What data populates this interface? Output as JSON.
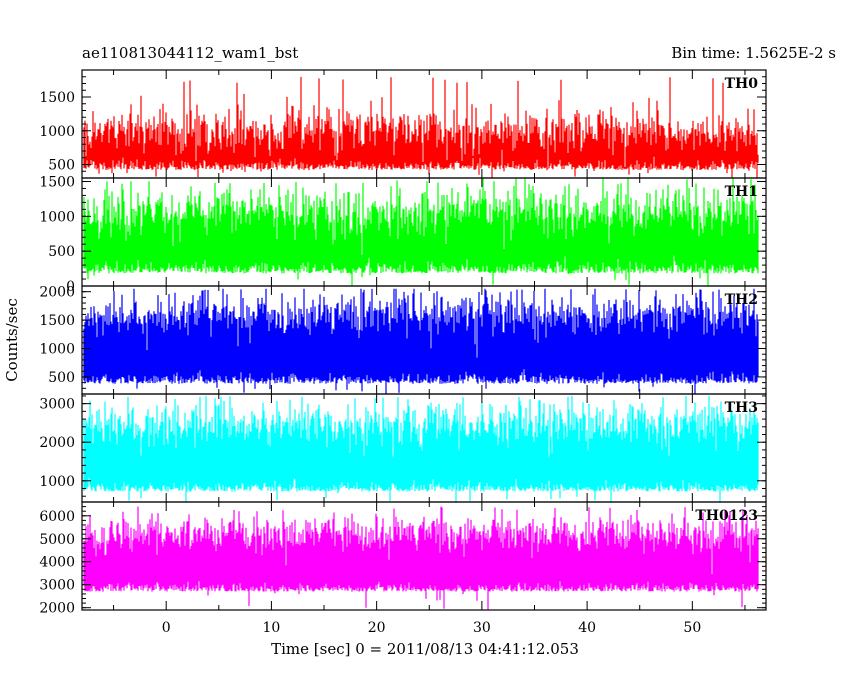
{
  "header": {
    "left_title": "ae110813044112_wam1_bst",
    "right_title": "Bin time: 1.5625E-2 s"
  },
  "chart_data": {
    "type": "line",
    "xlabel": "Time [sec] 0 = 2011/08/13 04:41:12.053",
    "ylabel": "Counts/sec",
    "xlim": [
      -8,
      57
    ],
    "x_ticks": [
      0,
      10,
      20,
      30,
      40,
      50
    ],
    "data_xrange": [
      -7.8,
      56.2
    ],
    "grid": false,
    "legend": "none",
    "panels": [
      {
        "name": "TH0",
        "color": "#ff0000",
        "ylim": [
          300,
          1900
        ],
        "y_ticks": [
          500,
          1000,
          1500
        ],
        "baseline_min": 420,
        "mean_high": 1010,
        "spread_high": 180,
        "max_peak": 1800
      },
      {
        "name": "TH1",
        "color": "#00ff00",
        "ylim": [
          0,
          1550
        ],
        "y_ticks": [
          0,
          500,
          1000,
          1500
        ],
        "baseline_min": 180,
        "mean_high": 1080,
        "spread_high": 200,
        "max_peak": 1550
      },
      {
        "name": "TH2",
        "color": "#0000ff",
        "ylim": [
          200,
          2100
        ],
        "y_ticks": [
          500,
          1000,
          1500,
          2000
        ],
        "baseline_min": 380,
        "mean_high": 1600,
        "spread_high": 220,
        "max_peak": 2050
      },
      {
        "name": "TH3",
        "color": "#00ffff",
        "ylim": [
          450,
          3250
        ],
        "y_ticks": [
          1000,
          2000,
          3000
        ],
        "baseline_min": 720,
        "mean_high": 2450,
        "spread_high": 300,
        "max_peak": 3200
      },
      {
        "name": "TH0123",
        "color": "#ff00ff",
        "ylim": [
          1900,
          6600
        ],
        "y_ticks": [
          2000,
          3000,
          4000,
          5000,
          6000
        ],
        "baseline_min": 2700,
        "mean_high": 5250,
        "spread_high": 450,
        "max_peak": 6400
      }
    ]
  }
}
